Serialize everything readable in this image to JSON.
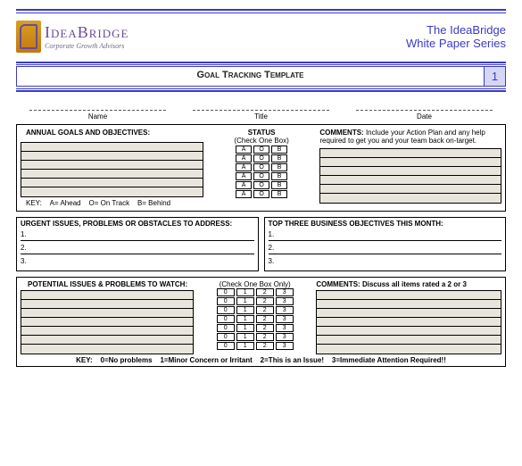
{
  "header": {
    "brand": "IdeaBridge",
    "tagline": "Corporate Growth Advisors",
    "line1": "The IdeaBridge",
    "line2": "White Paper Series"
  },
  "title": "Goal Tracking Template",
  "page_number": "1",
  "fields": {
    "name": "Name",
    "title": "Title",
    "date": "Date"
  },
  "goals": {
    "heading": "ANNUAL GOALS AND OBJECTIVES:",
    "key": "KEY:    A= Ahead    O= On Track    B= Behind",
    "status_heading": "STATUS",
    "status_sub": "(Check One Box)",
    "status_cols": [
      "A",
      "O",
      "B"
    ],
    "row_count": 6,
    "comments_heading": "COMMENTS:",
    "comments_text": "Include your Action Plan and any help required to get you and your team back on-target."
  },
  "urgent": {
    "heading": "URGENT ISSUES, PROBLEMS OR OBSTACLES TO ADDRESS:",
    "items": [
      "1.",
      "2.",
      "3."
    ]
  },
  "top3": {
    "heading": "TOP THREE BUSINESS OBJECTIVES THIS MONTH:",
    "items": [
      "1.",
      "2.",
      "3."
    ]
  },
  "watch": {
    "heading": "POTENTIAL ISSUES & PROBLEMS TO WATCH:",
    "sub": "(Check One Box Only)",
    "comments_heading": "COMMENTS: Discuss all items rated a 2 or 3",
    "rating_cols": [
      "0",
      "1",
      "2",
      "3"
    ],
    "row_count": 7,
    "key": "KEY:    0=No problems    1=Minor Concern or Irritant    2=This is an Issue!    3=Immediate Attention Required!!"
  },
  "colors": {
    "accent": "#3a3ac7",
    "shade": "#e8e6dc",
    "purple": "#6a4a9a"
  }
}
